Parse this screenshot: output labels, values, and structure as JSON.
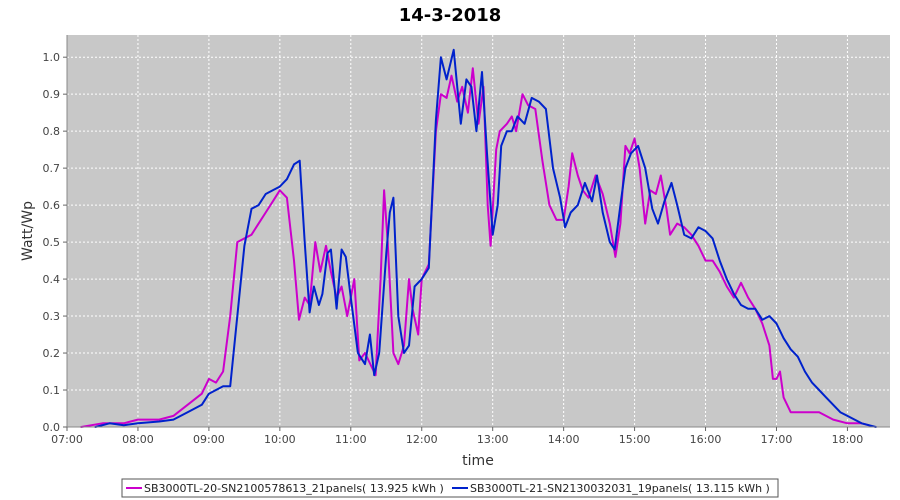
{
  "chart_data": {
    "type": "line",
    "title": "14-3-2018",
    "xlabel": "time",
    "ylabel": "Watt/Wp",
    "xlim": [
      7.0,
      18.6
    ],
    "ylim": [
      0.0,
      1.06
    ],
    "x_ticks": [
      {
        "value": 7,
        "label": "07:00"
      },
      {
        "value": 8,
        "label": "08:00"
      },
      {
        "value": 9,
        "label": "09:00"
      },
      {
        "value": 10,
        "label": "10:00"
      },
      {
        "value": 11,
        "label": "11:00"
      },
      {
        "value": 12,
        "label": "12:00"
      },
      {
        "value": 13,
        "label": "13:00"
      },
      {
        "value": 14,
        "label": "14:00"
      },
      {
        "value": 15,
        "label": "15:00"
      },
      {
        "value": 16,
        "label": "16:00"
      },
      {
        "value": 17,
        "label": "17:00"
      },
      {
        "value": 18,
        "label": "18:00"
      }
    ],
    "y_ticks": [
      {
        "value": 0.0,
        "label": "0.0"
      },
      {
        "value": 0.1,
        "label": "0.1"
      },
      {
        "value": 0.2,
        "label": "0.2"
      },
      {
        "value": 0.3,
        "label": "0.3"
      },
      {
        "value": 0.4,
        "label": "0.4"
      },
      {
        "value": 0.5,
        "label": "0.5"
      },
      {
        "value": 0.6,
        "label": "0.6"
      },
      {
        "value": 0.7,
        "label": "0.7"
      },
      {
        "value": 0.8,
        "label": "0.8"
      },
      {
        "value": 0.9,
        "label": "0.9"
      },
      {
        "value": 1.0,
        "label": "1.0"
      }
    ],
    "grid": true,
    "legend_position": "bottom",
    "background_color": "#c8c8c8",
    "series": [
      {
        "name": "SB3000TL-20-SN2100578613_21panels( 13.925 kWh )",
        "color": "#cc00cc",
        "points": [
          [
            7.2,
            0.0
          ],
          [
            7.5,
            0.01
          ],
          [
            7.8,
            0.01
          ],
          [
            8.0,
            0.02
          ],
          [
            8.3,
            0.02
          ],
          [
            8.5,
            0.03
          ],
          [
            8.7,
            0.06
          ],
          [
            8.9,
            0.09
          ],
          [
            9.0,
            0.13
          ],
          [
            9.1,
            0.12
          ],
          [
            9.2,
            0.15
          ],
          [
            9.3,
            0.3
          ],
          [
            9.4,
            0.5
          ],
          [
            9.5,
            0.51
          ],
          [
            9.6,
            0.52
          ],
          [
            9.7,
            0.55
          ],
          [
            9.8,
            0.58
          ],
          [
            9.9,
            0.61
          ],
          [
            10.0,
            0.64
          ],
          [
            10.1,
            0.62
          ],
          [
            10.2,
            0.45
          ],
          [
            10.27,
            0.29
          ],
          [
            10.35,
            0.35
          ],
          [
            10.42,
            0.33
          ],
          [
            10.5,
            0.5
          ],
          [
            10.57,
            0.42
          ],
          [
            10.65,
            0.49
          ],
          [
            10.72,
            0.42
          ],
          [
            10.8,
            0.35
          ],
          [
            10.87,
            0.38
          ],
          [
            10.95,
            0.3
          ],
          [
            11.05,
            0.4
          ],
          [
            11.12,
            0.18
          ],
          [
            11.2,
            0.2
          ],
          [
            11.3,
            0.16
          ],
          [
            11.35,
            0.14
          ],
          [
            11.42,
            0.4
          ],
          [
            11.47,
            0.64
          ],
          [
            11.52,
            0.5
          ],
          [
            11.6,
            0.2
          ],
          [
            11.67,
            0.17
          ],
          [
            11.75,
            0.22
          ],
          [
            11.82,
            0.4
          ],
          [
            11.87,
            0.32
          ],
          [
            11.95,
            0.25
          ],
          [
            12.0,
            0.4
          ],
          [
            12.1,
            0.44
          ],
          [
            12.2,
            0.8
          ],
          [
            12.27,
            0.9
          ],
          [
            12.35,
            0.89
          ],
          [
            12.42,
            0.95
          ],
          [
            12.5,
            0.88
          ],
          [
            12.57,
            0.92
          ],
          [
            12.65,
            0.85
          ],
          [
            12.72,
            0.97
          ],
          [
            12.8,
            0.82
          ],
          [
            12.87,
            0.92
          ],
          [
            12.93,
            0.6
          ],
          [
            12.97,
            0.49
          ],
          [
            13.05,
            0.75
          ],
          [
            13.1,
            0.8
          ],
          [
            13.2,
            0.82
          ],
          [
            13.27,
            0.84
          ],
          [
            13.33,
            0.8
          ],
          [
            13.42,
            0.9
          ],
          [
            13.5,
            0.87
          ],
          [
            13.6,
            0.86
          ],
          [
            13.7,
            0.72
          ],
          [
            13.8,
            0.6
          ],
          [
            13.9,
            0.56
          ],
          [
            14.0,
            0.56
          ],
          [
            14.07,
            0.65
          ],
          [
            14.12,
            0.74
          ],
          [
            14.2,
            0.68
          ],
          [
            14.27,
            0.64
          ],
          [
            14.35,
            0.62
          ],
          [
            14.45,
            0.68
          ],
          [
            14.55,
            0.63
          ],
          [
            14.65,
            0.55
          ],
          [
            14.73,
            0.46
          ],
          [
            14.8,
            0.55
          ],
          [
            14.87,
            0.76
          ],
          [
            14.93,
            0.74
          ],
          [
            15.0,
            0.78
          ],
          [
            15.07,
            0.7
          ],
          [
            15.15,
            0.55
          ],
          [
            15.22,
            0.64
          ],
          [
            15.3,
            0.63
          ],
          [
            15.37,
            0.68
          ],
          [
            15.45,
            0.59
          ],
          [
            15.5,
            0.52
          ],
          [
            15.6,
            0.55
          ],
          [
            15.7,
            0.54
          ],
          [
            15.8,
            0.52
          ],
          [
            15.9,
            0.49
          ],
          [
            16.0,
            0.45
          ],
          [
            16.1,
            0.45
          ],
          [
            16.2,
            0.42
          ],
          [
            16.3,
            0.38
          ],
          [
            16.4,
            0.35
          ],
          [
            16.5,
            0.39
          ],
          [
            16.6,
            0.35
          ],
          [
            16.7,
            0.32
          ],
          [
            16.8,
            0.28
          ],
          [
            16.9,
            0.22
          ],
          [
            16.95,
            0.13
          ],
          [
            17.0,
            0.13
          ],
          [
            17.05,
            0.15
          ],
          [
            17.1,
            0.08
          ],
          [
            17.2,
            0.04
          ],
          [
            17.4,
            0.04
          ],
          [
            17.6,
            0.04
          ],
          [
            17.8,
            0.02
          ],
          [
            18.0,
            0.01
          ],
          [
            18.2,
            0.01
          ],
          [
            18.3,
            0.005
          ]
        ]
      },
      {
        "name": "SB3000TL-21-SN2130032031_19panels( 13.115 kWh )",
        "color": "#0022cc",
        "points": [
          [
            7.4,
            0.0
          ],
          [
            7.6,
            0.01
          ],
          [
            7.8,
            0.005
          ],
          [
            8.0,
            0.01
          ],
          [
            8.3,
            0.015
          ],
          [
            8.5,
            0.02
          ],
          [
            8.7,
            0.04
          ],
          [
            8.9,
            0.06
          ],
          [
            9.0,
            0.09
          ],
          [
            9.1,
            0.1
          ],
          [
            9.2,
            0.11
          ],
          [
            9.3,
            0.11
          ],
          [
            9.4,
            0.3
          ],
          [
            9.5,
            0.49
          ],
          [
            9.6,
            0.59
          ],
          [
            9.7,
            0.6
          ],
          [
            9.8,
            0.63
          ],
          [
            9.9,
            0.64
          ],
          [
            10.0,
            0.65
          ],
          [
            10.1,
            0.67
          ],
          [
            10.2,
            0.71
          ],
          [
            10.28,
            0.72
          ],
          [
            10.35,
            0.5
          ],
          [
            10.42,
            0.31
          ],
          [
            10.48,
            0.38
          ],
          [
            10.55,
            0.33
          ],
          [
            10.6,
            0.36
          ],
          [
            10.67,
            0.47
          ],
          [
            10.72,
            0.48
          ],
          [
            10.8,
            0.32
          ],
          [
            10.87,
            0.48
          ],
          [
            10.93,
            0.46
          ],
          [
            11.0,
            0.35
          ],
          [
            11.1,
            0.2
          ],
          [
            11.2,
            0.17
          ],
          [
            11.27,
            0.25
          ],
          [
            11.33,
            0.14
          ],
          [
            11.4,
            0.2
          ],
          [
            11.5,
            0.47
          ],
          [
            11.55,
            0.58
          ],
          [
            11.6,
            0.62
          ],
          [
            11.67,
            0.3
          ],
          [
            11.75,
            0.2
          ],
          [
            11.82,
            0.22
          ],
          [
            11.9,
            0.38
          ],
          [
            12.0,
            0.4
          ],
          [
            12.1,
            0.43
          ],
          [
            12.2,
            0.83
          ],
          [
            12.27,
            1.0
          ],
          [
            12.35,
            0.94
          ],
          [
            12.45,
            1.02
          ],
          [
            12.55,
            0.82
          ],
          [
            12.63,
            0.94
          ],
          [
            12.7,
            0.92
          ],
          [
            12.77,
            0.8
          ],
          [
            12.85,
            0.96
          ],
          [
            12.92,
            0.74
          ],
          [
            13.0,
            0.52
          ],
          [
            13.07,
            0.6
          ],
          [
            13.12,
            0.76
          ],
          [
            13.2,
            0.8
          ],
          [
            13.27,
            0.8
          ],
          [
            13.35,
            0.84
          ],
          [
            13.45,
            0.82
          ],
          [
            13.55,
            0.89
          ],
          [
            13.65,
            0.88
          ],
          [
            13.75,
            0.86
          ],
          [
            13.85,
            0.7
          ],
          [
            13.95,
            0.62
          ],
          [
            14.02,
            0.54
          ],
          [
            14.1,
            0.58
          ],
          [
            14.2,
            0.6
          ],
          [
            14.3,
            0.66
          ],
          [
            14.4,
            0.61
          ],
          [
            14.47,
            0.68
          ],
          [
            14.55,
            0.58
          ],
          [
            14.65,
            0.5
          ],
          [
            14.72,
            0.48
          ],
          [
            14.8,
            0.6
          ],
          [
            14.87,
            0.7
          ],
          [
            14.95,
            0.74
          ],
          [
            15.05,
            0.76
          ],
          [
            15.15,
            0.7
          ],
          [
            15.25,
            0.59
          ],
          [
            15.33,
            0.55
          ],
          [
            15.42,
            0.61
          ],
          [
            15.52,
            0.66
          ],
          [
            15.6,
            0.6
          ],
          [
            15.7,
            0.52
          ],
          [
            15.8,
            0.51
          ],
          [
            15.9,
            0.54
          ],
          [
            16.0,
            0.53
          ],
          [
            16.1,
            0.51
          ],
          [
            16.2,
            0.45
          ],
          [
            16.3,
            0.4
          ],
          [
            16.4,
            0.36
          ],
          [
            16.5,
            0.33
          ],
          [
            16.6,
            0.32
          ],
          [
            16.7,
            0.32
          ],
          [
            16.8,
            0.29
          ],
          [
            16.9,
            0.3
          ],
          [
            17.0,
            0.28
          ],
          [
            17.1,
            0.24
          ],
          [
            17.2,
            0.21
          ],
          [
            17.3,
            0.19
          ],
          [
            17.4,
            0.15
          ],
          [
            17.5,
            0.12
          ],
          [
            17.6,
            0.1
          ],
          [
            17.7,
            0.08
          ],
          [
            17.8,
            0.06
          ],
          [
            17.9,
            0.04
          ],
          [
            18.0,
            0.03
          ],
          [
            18.2,
            0.01
          ],
          [
            18.4,
            0.0
          ]
        ]
      }
    ]
  }
}
